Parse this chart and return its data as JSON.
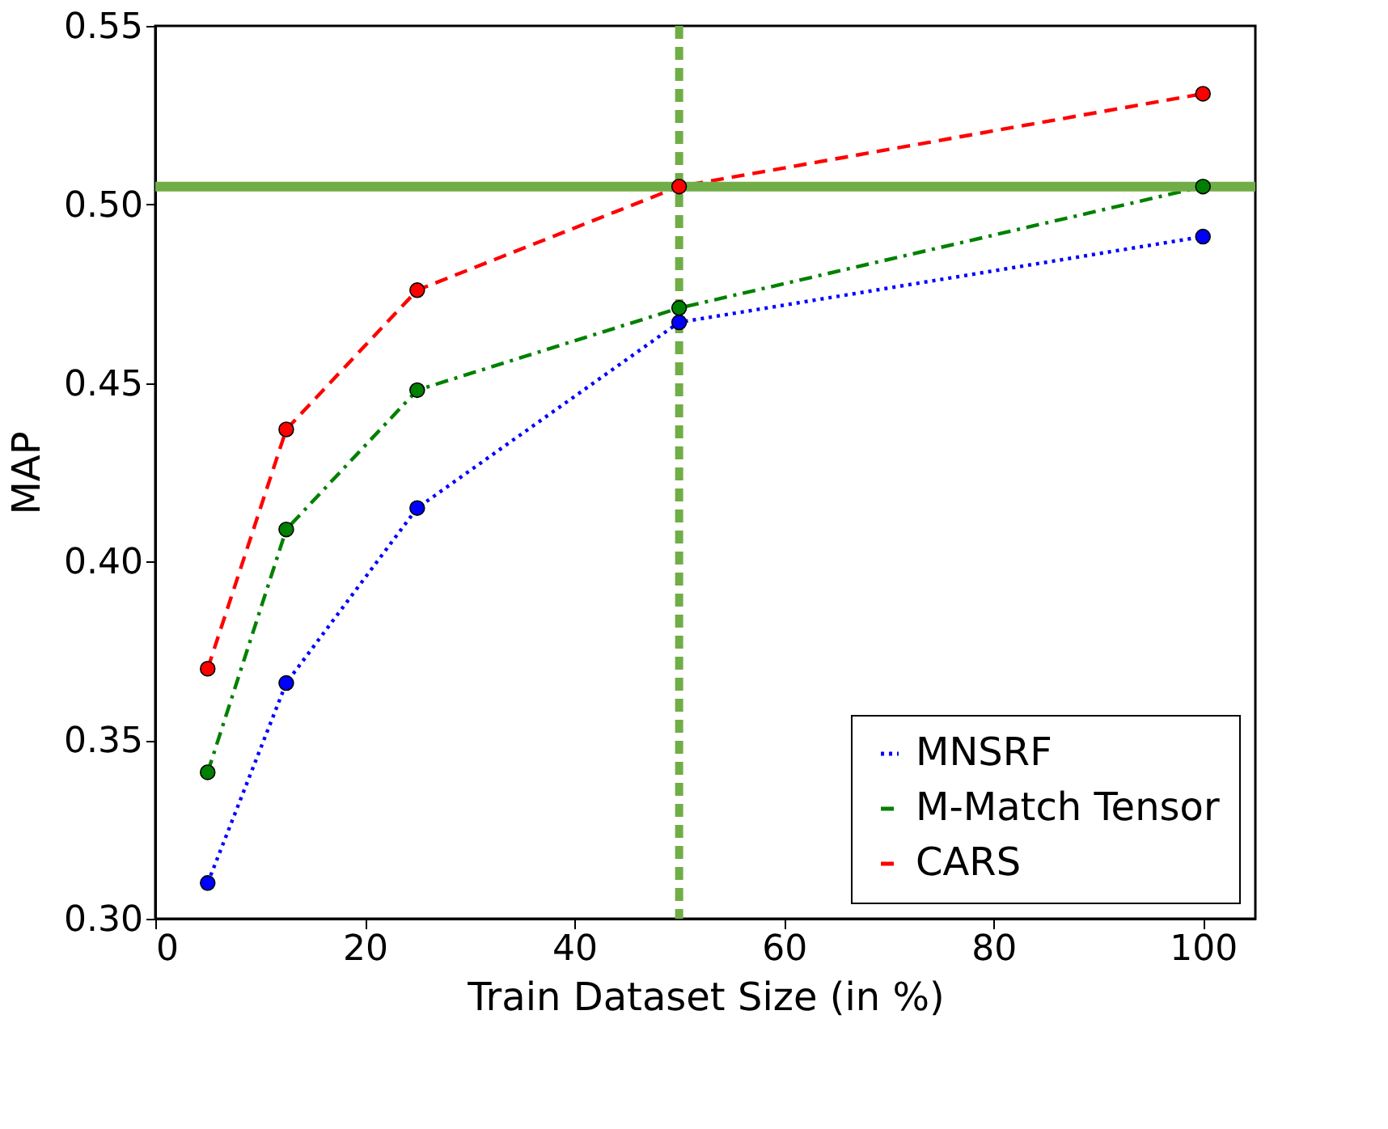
{
  "chart_data": {
    "type": "line",
    "xlabel": "Train Dataset Size (in %)",
    "ylabel": "MAP",
    "x": [
      5,
      12.5,
      25,
      50,
      100
    ],
    "series": [
      {
        "name": "MNSRF",
        "color": "#0000ff",
        "line_style": "dotted",
        "values": [
          0.31,
          0.366,
          0.415,
          0.467,
          0.491
        ]
      },
      {
        "name": "M-Match Tensor",
        "color": "#008000",
        "line_style": "dashdot",
        "values": [
          0.341,
          0.409,
          0.448,
          0.471,
          0.505
        ]
      },
      {
        "name": "CARS",
        "color": "#ff0000",
        "line_style": "dashed",
        "values": [
          0.37,
          0.437,
          0.476,
          0.505,
          0.531
        ]
      }
    ],
    "marker": "circle",
    "xlim": [
      0,
      105
    ],
    "xticks": [
      0,
      20,
      40,
      60,
      80,
      100
    ],
    "ylim": [
      0.3,
      0.55
    ],
    "yticks": [
      {
        "value": 0.3,
        "label": "0.30"
      },
      {
        "value": 0.35,
        "label": "0.35"
      },
      {
        "value": 0.4,
        "label": "0.40"
      },
      {
        "value": 0.45,
        "label": "0.45"
      },
      {
        "value": 0.5,
        "label": "0.50"
      },
      {
        "value": 0.55,
        "label": "0.55"
      }
    ],
    "ref_lines": [
      {
        "axis": "y",
        "value": 0.505,
        "color": "#70ad47",
        "line_style": "solid"
      },
      {
        "axis": "x",
        "value": 50,
        "color": "#70ad47",
        "line_style": "dashed"
      }
    ],
    "grid": false,
    "legend": "bottom right"
  }
}
